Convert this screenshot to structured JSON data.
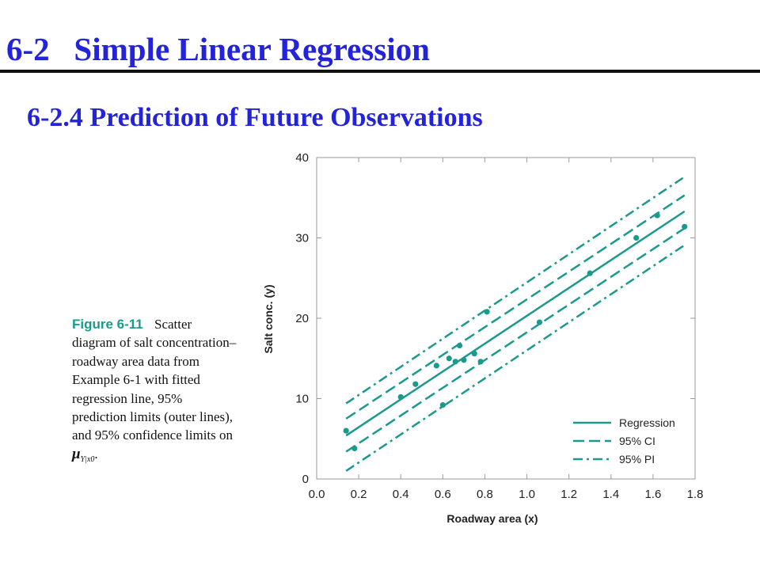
{
  "slide": {
    "title": "6-2   Simple Linear Regression",
    "subtitle": "6-2.4 Prediction of Future Observations"
  },
  "caption": {
    "label": "Figure 6-11",
    "text": "Scatter diagram of salt concentration–roadway area data from Example 6-1 with fitted regression line, 95% prediction limits (outer lines), and 95% confidence limits on",
    "symbol": "μ",
    "symbol_sub": "Y|x0",
    "end": "."
  },
  "colors": {
    "accent": "#1a9a8c",
    "title": "#2323d9"
  },
  "chart_data": {
    "type": "scatter",
    "xlabel": "Roadway area (x)",
    "ylabel": "Salt conc. (y)",
    "xlim": [
      0.0,
      1.8
    ],
    "ylim": [
      0,
      40
    ],
    "xticks": [
      "0.0",
      "0.2",
      "0.4",
      "0.6",
      "0.8",
      "1.0",
      "1.2",
      "1.4",
      "1.6",
      "1.8"
    ],
    "yticks": [
      "0",
      "10",
      "20",
      "30",
      "40"
    ],
    "grid": false,
    "legend_position": "bottom-right",
    "points": [
      [
        0.14,
        6.0
      ],
      [
        0.18,
        3.8
      ],
      [
        0.4,
        10.2
      ],
      [
        0.47,
        11.8
      ],
      [
        0.57,
        14.1
      ],
      [
        0.6,
        9.2
      ],
      [
        0.63,
        15.0
      ],
      [
        0.66,
        14.6
      ],
      [
        0.68,
        16.6
      ],
      [
        0.7,
        14.8
      ],
      [
        0.75,
        15.6
      ],
      [
        0.78,
        14.6
      ],
      [
        0.81,
        20.8
      ],
      [
        1.06,
        19.5
      ],
      [
        1.3,
        25.6
      ],
      [
        1.52,
        30.0
      ],
      [
        1.62,
        32.8
      ],
      [
        1.75,
        31.4
      ]
    ],
    "series": [
      {
        "name": "Regression",
        "style": "solid",
        "x": [
          0.14,
          1.75
        ],
        "y": [
          5.4,
          33.3
        ]
      },
      {
        "name": "95% CI",
        "style": "dashed",
        "x": [
          0.14,
          1.75
        ],
        "y_lower": [
          3.4,
          31.2
        ],
        "y_upper": [
          7.5,
          35.3
        ]
      },
      {
        "name": "95% PI",
        "style": "dashdot",
        "x": [
          0.14,
          1.75
        ],
        "y_lower": [
          1.0,
          29.1
        ],
        "y_upper": [
          9.4,
          37.6
        ]
      }
    ]
  }
}
